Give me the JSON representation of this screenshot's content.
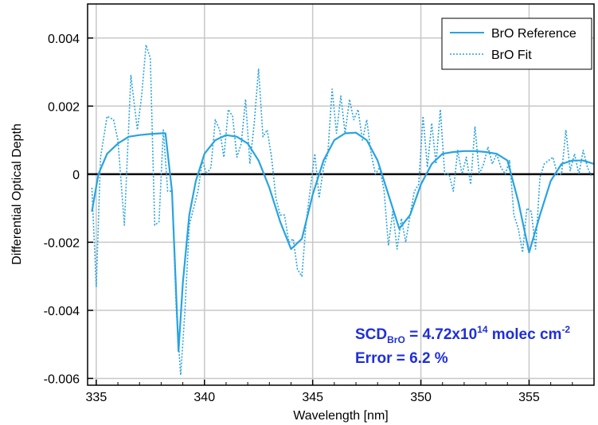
{
  "chart_data": {
    "type": "line",
    "xlabel": "Wavelength [nm]",
    "ylabel": "Differential Optical Depth",
    "xlim": [
      334.6,
      358.0
    ],
    "ylim": [
      -0.0062,
      0.005
    ],
    "xticks": [
      335,
      340,
      345,
      350,
      355
    ],
    "xtick_labels": [
      "335",
      "340",
      "345",
      "350",
      "355"
    ],
    "yticks": [
      0.004,
      0.002,
      0,
      -0.002,
      -0.004,
      -0.006
    ],
    "ytick_labels": [
      "0.004",
      "0.002",
      "0",
      "-0.002",
      "-0.004",
      "-0.006"
    ],
    "grid": true,
    "legend_position": "top-right",
    "colors": {
      "reference": "#29a3e0",
      "fit": "#29a3e0",
      "annotation": "#1f2fd9",
      "grid": "#c8c8c8",
      "zero_line": "#000000"
    },
    "series": [
      {
        "name": "BrO Reference",
        "style": "solid",
        "x": [
          334.8,
          335.1,
          335.5,
          336.0,
          336.5,
          337.0,
          337.5,
          338.0,
          338.2,
          338.5,
          338.8,
          339.0,
          339.3,
          339.6,
          340.0,
          340.5,
          341.0,
          341.5,
          342.0,
          342.5,
          343.0,
          343.5,
          344.0,
          344.5,
          345.0,
          345.5,
          346.0,
          346.5,
          347.0,
          347.5,
          348.0,
          348.5,
          349.0,
          349.5,
          350.0,
          350.5,
          351.0,
          351.5,
          352.0,
          352.5,
          353.0,
          353.5,
          354.0,
          354.5,
          355.0,
          355.5,
          356.0,
          356.5,
          357.0,
          357.5,
          358.0
        ],
        "y": [
          -0.0011,
          0.0,
          0.0006,
          0.0009,
          0.0011,
          0.00115,
          0.00118,
          0.0012,
          0.0012,
          -0.0005,
          -0.0052,
          -0.0032,
          -0.0012,
          -0.0002,
          0.0006,
          0.001,
          0.00115,
          0.0011,
          0.0009,
          0.0004,
          -0.0004,
          -0.0014,
          -0.0022,
          -0.0019,
          -0.0006,
          0.0004,
          0.001,
          0.0012,
          0.00122,
          0.001,
          0.0004,
          -0.0006,
          -0.0016,
          -0.0012,
          -0.0003,
          0.0003,
          0.0006,
          0.00065,
          0.00068,
          0.00068,
          0.00065,
          0.0006,
          0.0004,
          -0.0008,
          -0.0023,
          -0.0012,
          -0.0002,
          0.0003,
          0.0004,
          0.0004,
          0.0003
        ]
      },
      {
        "name": "BrO Fit",
        "style": "dotted",
        "x": [
          334.8,
          335.0,
          335.2,
          335.5,
          335.8,
          336.0,
          336.3,
          336.6,
          336.9,
          337.1,
          337.3,
          337.5,
          337.7,
          337.9,
          338.1,
          338.3,
          338.5,
          338.7,
          338.9,
          339.1,
          339.3,
          339.5,
          339.7,
          339.9,
          340.1,
          340.3,
          340.5,
          340.7,
          340.9,
          341.1,
          341.3,
          341.5,
          341.7,
          341.9,
          342.1,
          342.3,
          342.5,
          342.7,
          342.9,
          343.1,
          343.3,
          343.5,
          343.7,
          343.9,
          344.1,
          344.3,
          344.5,
          344.7,
          344.9,
          345.1,
          345.3,
          345.5,
          345.7,
          345.9,
          346.1,
          346.3,
          346.5,
          346.7,
          346.9,
          347.1,
          347.3,
          347.5,
          347.7,
          347.9,
          348.1,
          348.3,
          348.5,
          348.7,
          348.9,
          349.1,
          349.3,
          349.5,
          349.7,
          349.9,
          350.1,
          350.3,
          350.5,
          350.7,
          350.9,
          351.1,
          351.3,
          351.5,
          351.7,
          351.9,
          352.1,
          352.3,
          352.5,
          352.7,
          352.9,
          353.1,
          353.3,
          353.5,
          353.7,
          353.9,
          354.1,
          354.3,
          354.5,
          354.7,
          354.9,
          355.1,
          355.3,
          355.5,
          355.7,
          355.9,
          356.1,
          356.3,
          356.5,
          356.7,
          356.9,
          357.1,
          357.3,
          357.5,
          357.7,
          357.9
        ],
        "y": [
          -0.0004,
          -0.0033,
          0.0005,
          0.0017,
          0.0016,
          0.001,
          -0.0015,
          0.0029,
          0.0013,
          0.0023,
          0.0038,
          0.0034,
          -0.0015,
          -0.0014,
          0.0013,
          -0.0005,
          -0.0005,
          -0.004,
          -0.0059,
          -0.004,
          -0.0015,
          -0.001,
          -0.0005,
          0.0004,
          0.0,
          0.0002,
          0.0016,
          0.0013,
          0.0005,
          0.0019,
          0.0017,
          0.0005,
          0.0009,
          0.0022,
          0.0003,
          0.0015,
          0.0031,
          0.0011,
          0.0013,
          0.0005,
          -0.0007,
          -0.0012,
          -0.0012,
          -0.002,
          -0.0019,
          -0.0028,
          -0.003,
          -0.0014,
          -0.0004,
          0.0006,
          -0.0007,
          0.0002,
          0.0006,
          0.0025,
          0.0012,
          0.0023,
          0.0012,
          0.0022,
          0.0016,
          0.0019,
          0.001,
          0.0016,
          0.0006,
          0.0,
          0.0002,
          -0.0005,
          -0.0021,
          -0.0011,
          -0.0022,
          -0.0013,
          -0.002,
          -0.0012,
          -0.0005,
          -0.0003,
          0.0017,
          0.0002,
          0.0015,
          0.0003,
          0.0019,
          0.0,
          0.0,
          -0.0005,
          0.0007,
          0.0,
          0.0005,
          -0.0003,
          0.0014,
          0.0,
          0.0003,
          0.0008,
          0.0003,
          0.0006,
          0.0002,
          0.0,
          0.0004,
          -0.0012,
          -0.0016,
          -0.0023,
          -0.001,
          -0.0011,
          -0.0022,
          -0.0001,
          0.0003,
          0.0004,
          0.0005,
          0.0,
          0.0,
          0.0013,
          0.0001,
          0.0006,
          0.0,
          0.0007,
          0.0002,
          -0.0001
        ]
      }
    ],
    "annotation": {
      "line1_prefix": "SCD",
      "line1_sub": "BrO",
      "line1_mid": " = 4.72x10",
      "line1_sup": "14",
      "line1_unit": " molec cm",
      "line1_unit_sup": "-2",
      "line2": "Error = 6.2 %"
    }
  }
}
